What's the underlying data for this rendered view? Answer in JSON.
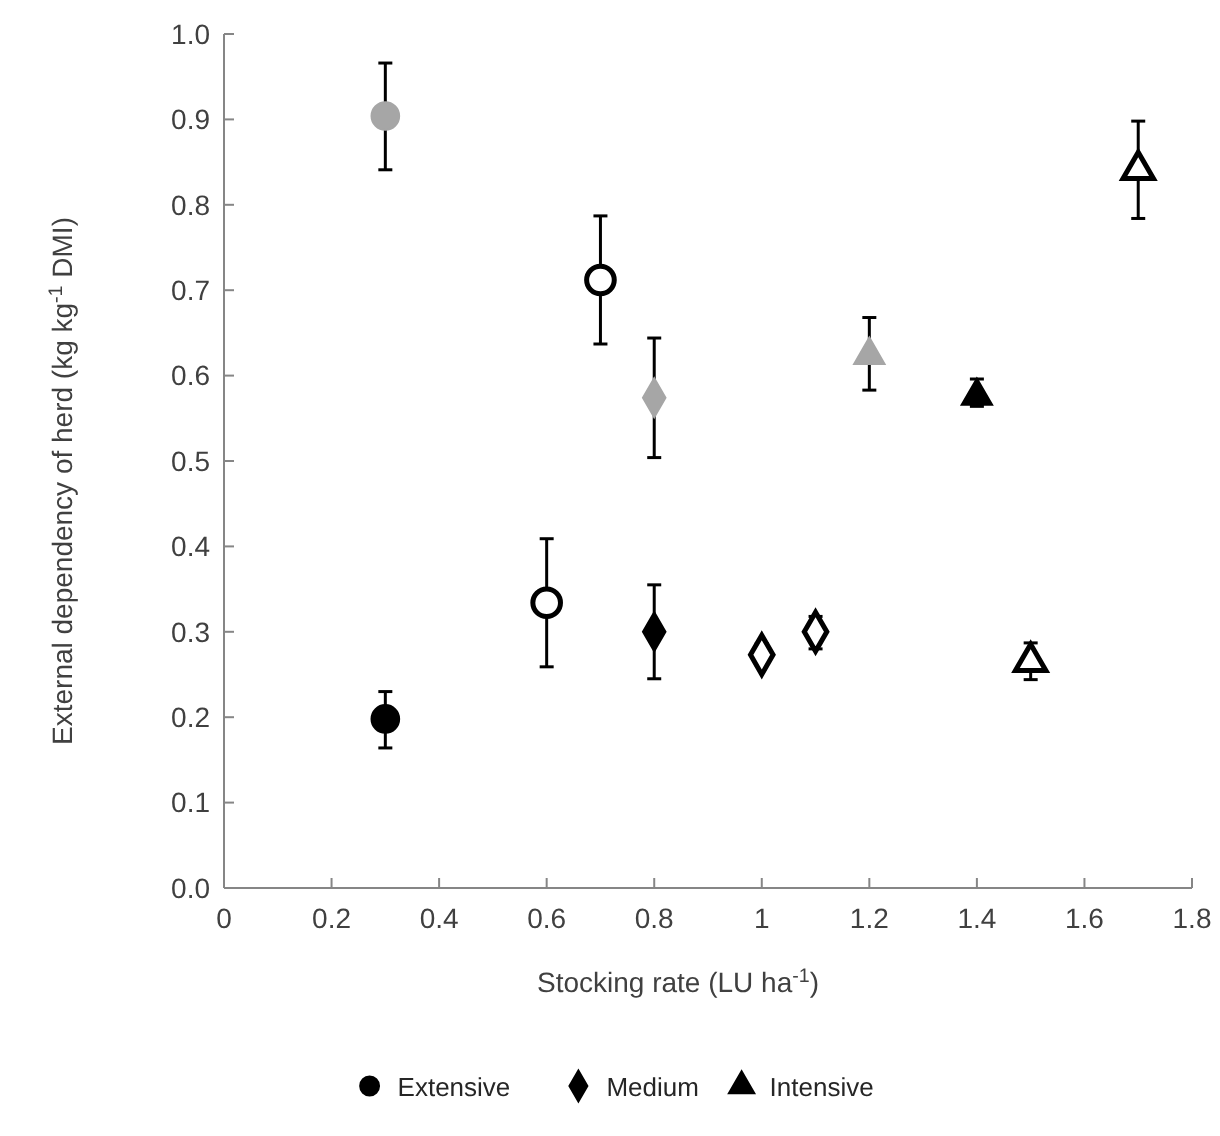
{
  "chart_data": {
    "type": "scatter",
    "xlabel": "Stocking rate (LU ha$^{-1}$)",
    "ylabel": "External dependency of herd (kg kg$^{-1}$ DMI)",
    "xlim": [
      0,
      1.8
    ],
    "xticks": [
      0,
      0.2,
      0.4,
      0.6,
      0.8,
      1,
      1.2,
      1.4,
      1.6,
      1.8
    ],
    "ylim": [
      0,
      1
    ],
    "yticks": [
      {
        "value": 0,
        "label": "0.0"
      },
      {
        "value": 0.1,
        "label": "0.1"
      },
      {
        "value": 0.2,
        "label": "0.2"
      },
      {
        "value": 0.3,
        "label": "0.3"
      },
      {
        "value": 0.4,
        "label": "0.4"
      },
      {
        "value": 0.5,
        "label": "0.5"
      },
      {
        "value": 0.6,
        "label": "0.6"
      },
      {
        "value": 0.7,
        "label": "0.7"
      },
      {
        "value": 0.8,
        "label": "0.8"
      },
      {
        "value": 0.9,
        "label": "0.9"
      },
      {
        "value": 1,
        "label": "1.0"
      }
    ],
    "grid": false,
    "legend": "bottom",
    "series": [
      {
        "name": "Extensive",
        "marker": "circle",
        "color": "#000000",
        "x": [
          0.3,
          0.3,
          0.6,
          0.7
        ],
        "values": [
          0.904,
          0.198,
          0.334,
          0.712
        ],
        "colors": [
          "#a6a6a6",
          "#000000",
          "#ffffff",
          "#ffffff"
        ],
        "errors": [
          [
            0.841,
            0.966
          ],
          [
            0.164,
            0.23
          ],
          [
            0.259,
            0.409
          ],
          [
            0.637,
            0.787
          ]
        ]
      },
      {
        "name": "Medium",
        "marker": "diamond",
        "color": "#000000",
        "x": [
          0.8,
          0.8,
          1,
          1.1
        ],
        "values": [
          0.574,
          0.3,
          0.273,
          0.3
        ],
        "colors": [
          "#a6a6a6",
          "#000000",
          "#ffffff",
          "#ffffff"
        ],
        "errors": [
          [
            0.504,
            0.644
          ],
          [
            0.245,
            0.355
          ],
          [
            0.261,
            0.286
          ],
          [
            0.28,
            0.318
          ]
        ]
      },
      {
        "name": "Intensive",
        "marker": "triangle",
        "color": "#000000",
        "x": [
          1.2,
          1.4,
          1.5,
          1.7
        ],
        "values": [
          0.624,
          0.576,
          0.265,
          0.841
        ],
        "colors": [
          "#a6a6a6",
          "#000000",
          "#ffffff",
          "#ffffff"
        ],
        "errors": [
          [
            0.583,
            0.668
          ],
          [
            0.564,
            0.596
          ],
          [
            0.244,
            0.287
          ],
          [
            0.784,
            0.898
          ]
        ]
      }
    ]
  }
}
